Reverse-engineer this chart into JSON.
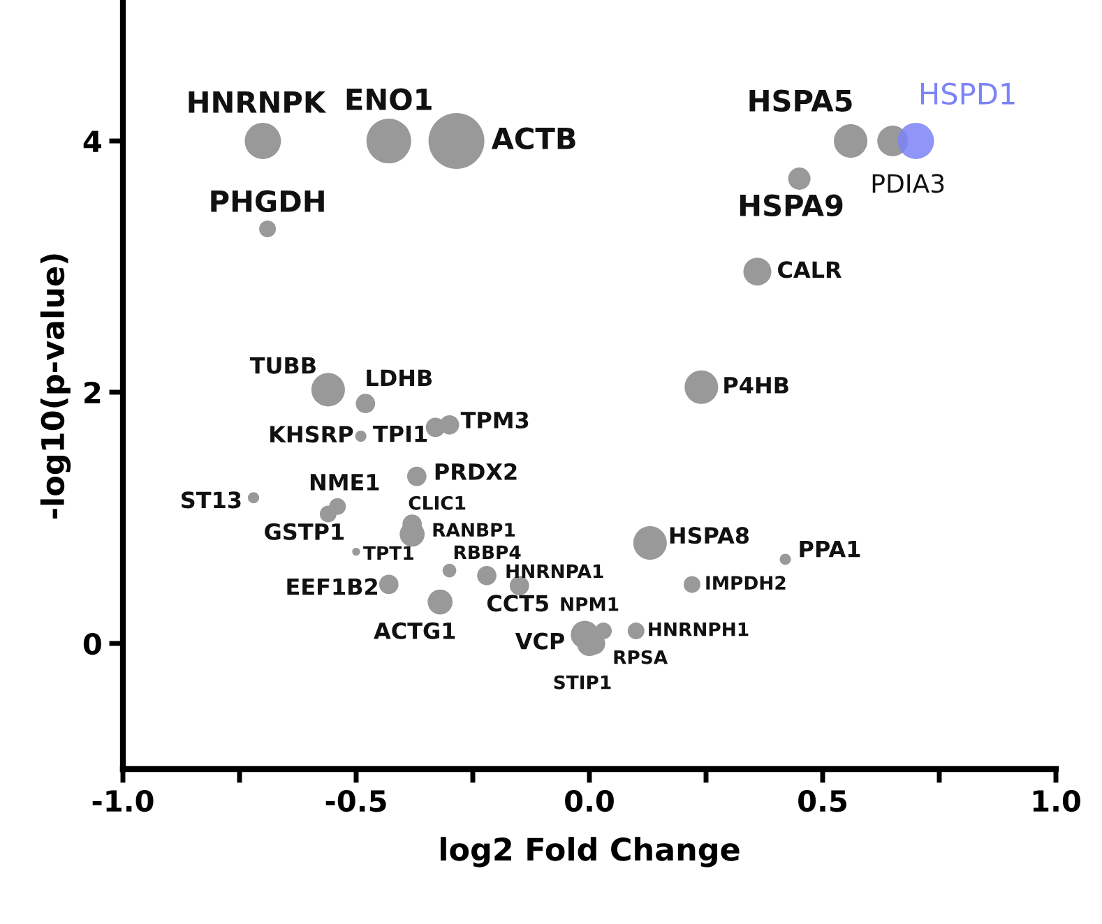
{
  "chart_data": {
    "type": "bubble",
    "xlabel": "log2 Fold Change",
    "ylabel": "-log10(p-value)",
    "xlim": [
      -1.0,
      1.0
    ],
    "ylim": [
      -1.0,
      5.1
    ],
    "xticks": [
      {
        "value": -1.0,
        "label": "-1.0"
      },
      {
        "value": -0.75,
        "label": null
      },
      {
        "value": -0.5,
        "label": "-0.5"
      },
      {
        "value": -0.25,
        "label": null
      },
      {
        "value": 0.0,
        "label": "0.0"
      },
      {
        "value": 0.25,
        "label": null
      },
      {
        "value": 0.5,
        "label": "0.5"
      },
      {
        "value": 0.75,
        "label": null
      },
      {
        "value": 1.0,
        "label": "1.0"
      }
    ],
    "yticks": [
      0,
      2,
      4
    ],
    "grid": false,
    "legend": false,
    "series": [
      {
        "color": "#999999",
        "x": [
          -0.7,
          -0.43,
          -0.285,
          -0.69,
          0.56,
          0.65,
          0.45,
          0.36,
          -0.56,
          -0.48,
          -0.49,
          -0.33,
          -0.3,
          -0.37,
          -0.72,
          -0.54,
          -0.56,
          -0.38,
          -0.38,
          -0.5,
          -0.3,
          -0.43,
          -0.22,
          -0.32,
          -0.15,
          0.03,
          -0.01,
          0.1,
          0.01,
          0.0,
          0.24,
          0.13,
          0.42,
          0.22
        ],
        "values": [
          4.0,
          4.0,
          4.0,
          3.3,
          4.0,
          4.0,
          3.7,
          2.96,
          2.02,
          1.91,
          1.65,
          1.72,
          1.74,
          1.33,
          1.16,
          1.09,
          1.03,
          0.95,
          0.87,
          0.73,
          0.58,
          0.47,
          0.54,
          0.33,
          0.46,
          0.1,
          0.07,
          0.1,
          0.0,
          0.0,
          2.04,
          0.8,
          0.67,
          0.47
        ],
        "sizes": [
          0.42,
          0.64,
          1.0,
          0.09,
          0.36,
          0.3,
          0.16,
          0.25,
          0.36,
          0.12,
          0.04,
          0.12,
          0.12,
          0.12,
          0.04,
          0.09,
          0.09,
          0.12,
          0.2,
          0.02,
          0.06,
          0.12,
          0.12,
          0.2,
          0.12,
          0.09,
          0.25,
          0.09,
          0.16,
          0.2,
          0.36,
          0.36,
          0.04,
          0.09
        ]
      },
      {
        "name": "HSPD1",
        "color": "#7b84f6",
        "x": [
          0.7
        ],
        "values": [
          4.0
        ],
        "sizes": [
          0.42
        ]
      }
    ],
    "annotations": [
      {
        "text": "HNRNPK",
        "x": -0.7,
        "y": 4.0
      },
      {
        "text": "ENO1",
        "x": -0.43,
        "y": 4.0
      },
      {
        "text": "ACTB",
        "x": -0.285,
        "y": 4.0
      },
      {
        "text": "PHGDH",
        "x": -0.69,
        "y": 3.3
      },
      {
        "text": "HSPA5",
        "x": 0.56,
        "y": 4.0
      },
      {
        "text": "PDIA3",
        "x": 0.65,
        "y": 4.0
      },
      {
        "text": "HSPA9",
        "x": 0.45,
        "y": 3.7
      },
      {
        "text": "CALR",
        "x": 0.36,
        "y": 2.96
      },
      {
        "text": "TUBB",
        "x": -0.56,
        "y": 2.02
      },
      {
        "text": "LDHB",
        "x": -0.48,
        "y": 1.91
      },
      {
        "text": "KHSRP",
        "x": -0.49,
        "y": 1.65
      },
      {
        "text": "TPI1",
        "x": -0.33,
        "y": 1.72
      },
      {
        "text": "TPM3",
        "x": -0.3,
        "y": 1.74
      },
      {
        "text": "PRDX2",
        "x": -0.37,
        "y": 1.33
      },
      {
        "text": "ST13",
        "x": -0.72,
        "y": 1.16
      },
      {
        "text": "NME1",
        "x": -0.54,
        "y": 1.09
      },
      {
        "text": "GSTP1",
        "x": -0.56,
        "y": 1.03
      },
      {
        "text": "CLIC1",
        "x": -0.38,
        "y": 0.95
      },
      {
        "text": "RANBP1",
        "x": -0.38,
        "y": 0.87
      },
      {
        "text": "TPT1",
        "x": -0.5,
        "y": 0.73
      },
      {
        "text": "RBBP4",
        "x": -0.3,
        "y": 0.58
      },
      {
        "text": "EEF1B2",
        "x": -0.43,
        "y": 0.47
      },
      {
        "text": "HNRNPA1",
        "x": -0.22,
        "y": 0.54
      },
      {
        "text": "ACTG1",
        "x": -0.32,
        "y": 0.33
      },
      {
        "text": "CCT5",
        "x": -0.15,
        "y": 0.46
      },
      {
        "text": "NPM1",
        "x": 0.03,
        "y": 0.1
      },
      {
        "text": "VCP",
        "x": -0.01,
        "y": 0.07
      },
      {
        "text": "HNRNPH1",
        "x": 0.1,
        "y": 0.1
      },
      {
        "text": "RPSA",
        "x": 0.01,
        "y": 0.0
      },
      {
        "text": "STIP1",
        "x": 0.0,
        "y": 0.0
      },
      {
        "text": "P4HB",
        "x": 0.24,
        "y": 2.04
      },
      {
        "text": "HSPA8",
        "x": 0.13,
        "y": 0.8
      },
      {
        "text": "PPA1",
        "x": 0.42,
        "y": 0.67
      },
      {
        "text": "IMPDH2",
        "x": 0.22,
        "y": 0.47
      }
    ]
  }
}
